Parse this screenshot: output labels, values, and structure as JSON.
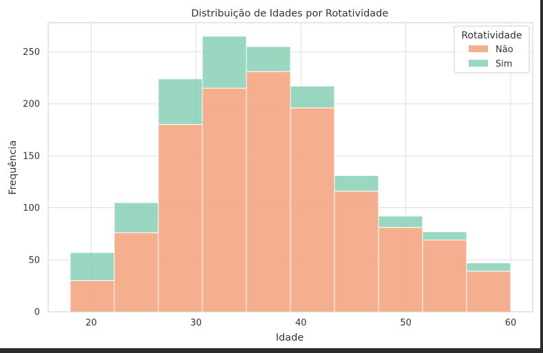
{
  "chart_data": {
    "type": "bar",
    "title": "Distribuição de Idades por Rotatividade",
    "xlabel": "Idade",
    "ylabel": "Frequência",
    "stacked": true,
    "bin_edges": [
      18,
      22.2,
      26.4,
      30.6,
      34.8,
      39,
      43.2,
      47.4,
      51.6,
      55.8,
      60
    ],
    "xlim": [
      15.9,
      62.1
    ],
    "ylim": [
      0,
      278
    ],
    "xticks": [
      20,
      30,
      40,
      50,
      60
    ],
    "yticks": [
      0,
      50,
      100,
      150,
      200,
      250
    ],
    "series": [
      {
        "name": "Não",
        "color": "#f4a582",
        "values": [
          30,
          76,
          180,
          215,
          231,
          196,
          116,
          81,
          69,
          39
        ]
      },
      {
        "name": "Sim",
        "color": "#7fcdb0",
        "values": [
          27,
          29,
          44,
          50,
          24,
          21,
          15,
          11,
          8,
          8
        ]
      }
    ],
    "legend": {
      "title": "Rotatividade",
      "placement": "top-right"
    },
    "grid": true
  }
}
